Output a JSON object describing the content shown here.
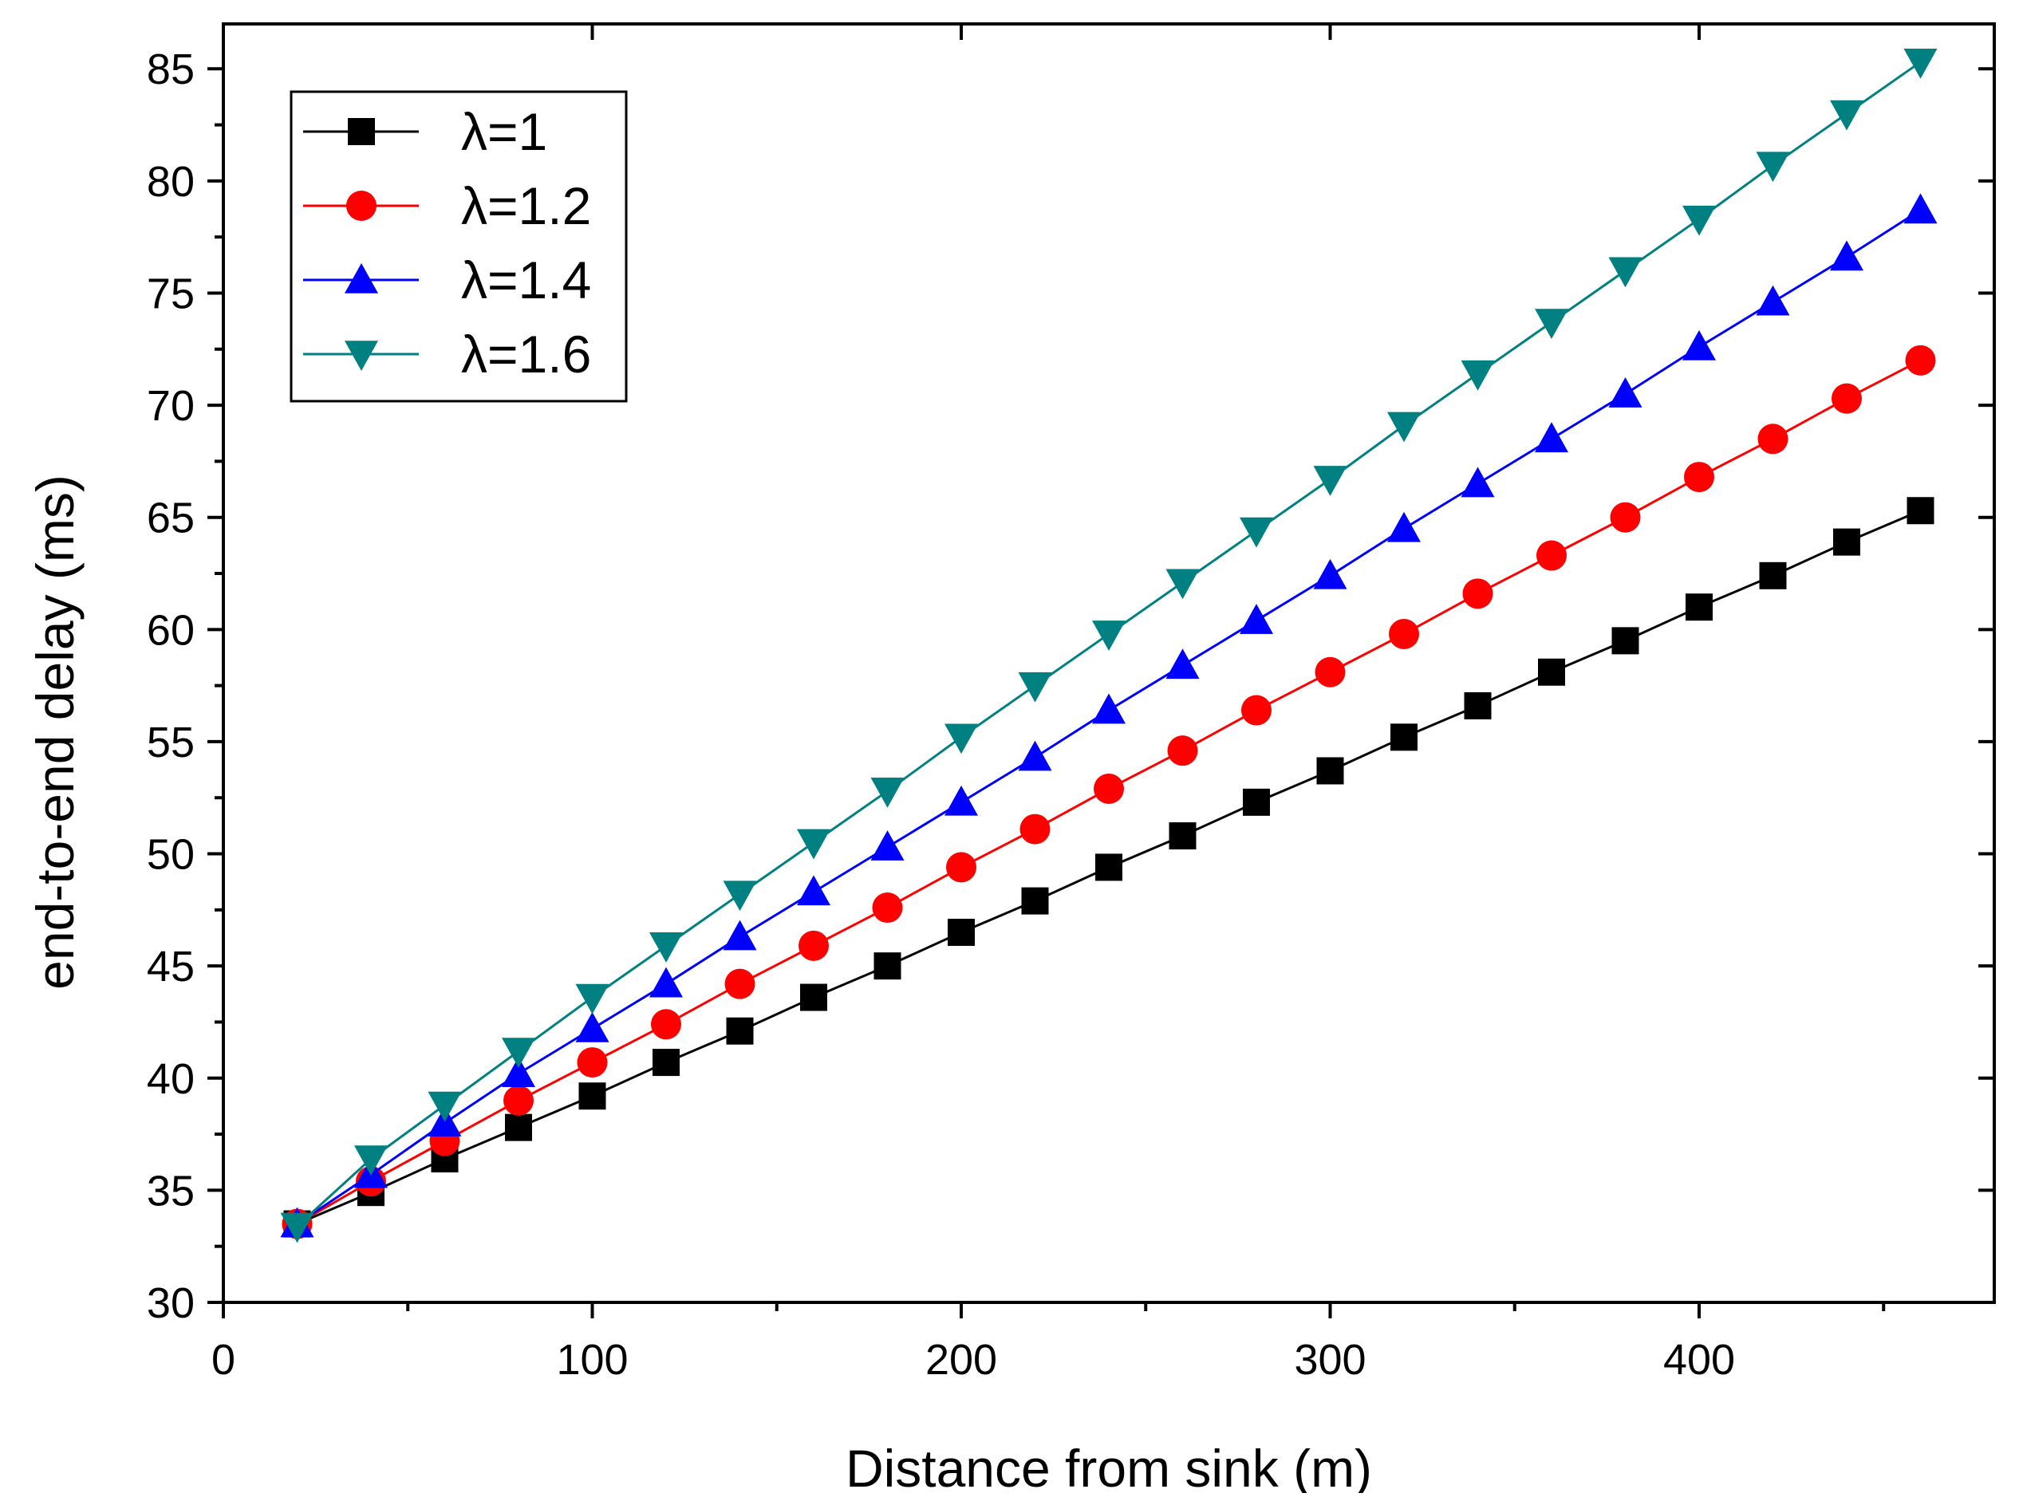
{
  "chart_data": {
    "type": "line",
    "title": "",
    "xlabel": "Distance from sink (m)",
    "ylabel": "end-to-end delay (ms)",
    "xlim": [
      0,
      480
    ],
    "ylim": [
      30,
      87
    ],
    "x_ticks": [
      0,
      100,
      200,
      300,
      400
    ],
    "x_tick_labels": [
      "0",
      "100",
      "200",
      "300",
      "400"
    ],
    "y_ticks": [
      30,
      35,
      40,
      45,
      50,
      55,
      60,
      65,
      70,
      75,
      80,
      85
    ],
    "y_tick_labels": [
      "30",
      "35",
      "40",
      "45",
      "50",
      "55",
      "60",
      "65",
      "70",
      "75",
      "80",
      "85"
    ],
    "grid": false,
    "legend_position": "top-left",
    "x": [
      20,
      40,
      60,
      80,
      100,
      120,
      140,
      160,
      180,
      200,
      220,
      240,
      260,
      280,
      300,
      320,
      340,
      360,
      380,
      400,
      420,
      440,
      460
    ],
    "series": [
      {
        "name": "λ=1",
        "color": "#000000",
        "marker": "square",
        "values": [
          33.5,
          34.9,
          36.4,
          37.8,
          39.2,
          40.7,
          42.1,
          43.6,
          45.0,
          46.5,
          47.9,
          49.4,
          50.8,
          52.3,
          53.7,
          55.2,
          56.6,
          58.1,
          59.5,
          61.0,
          62.4,
          63.9,
          65.3
        ]
      },
      {
        "name": "λ=1.2",
        "color": "#ff0000",
        "marker": "circle",
        "values": [
          33.5,
          35.4,
          37.2,
          39.0,
          40.7,
          42.4,
          44.2,
          45.9,
          47.6,
          49.4,
          51.1,
          52.9,
          54.6,
          56.4,
          58.1,
          59.8,
          61.6,
          63.3,
          65.0,
          66.8,
          68.5,
          70.3,
          72.0
        ]
      },
      {
        "name": "λ=1.4",
        "color": "#0000ff",
        "marker": "triangle-up",
        "values": [
          33.5,
          35.7,
          38.0,
          40.2,
          42.2,
          44.2,
          46.3,
          48.3,
          50.3,
          52.3,
          54.3,
          56.4,
          58.4,
          60.4,
          62.4,
          64.5,
          66.5,
          68.5,
          70.5,
          72.6,
          74.6,
          76.6,
          78.7
        ]
      },
      {
        "name": "λ=1.6",
        "color": "#008080",
        "marker": "triangle-down",
        "values": [
          33.4,
          36.4,
          38.8,
          41.2,
          43.6,
          45.9,
          48.2,
          50.5,
          52.8,
          55.2,
          57.5,
          59.8,
          62.1,
          64.4,
          66.7,
          69.1,
          71.4,
          73.7,
          76.0,
          78.3,
          80.7,
          83.0,
          85.3
        ]
      }
    ]
  }
}
